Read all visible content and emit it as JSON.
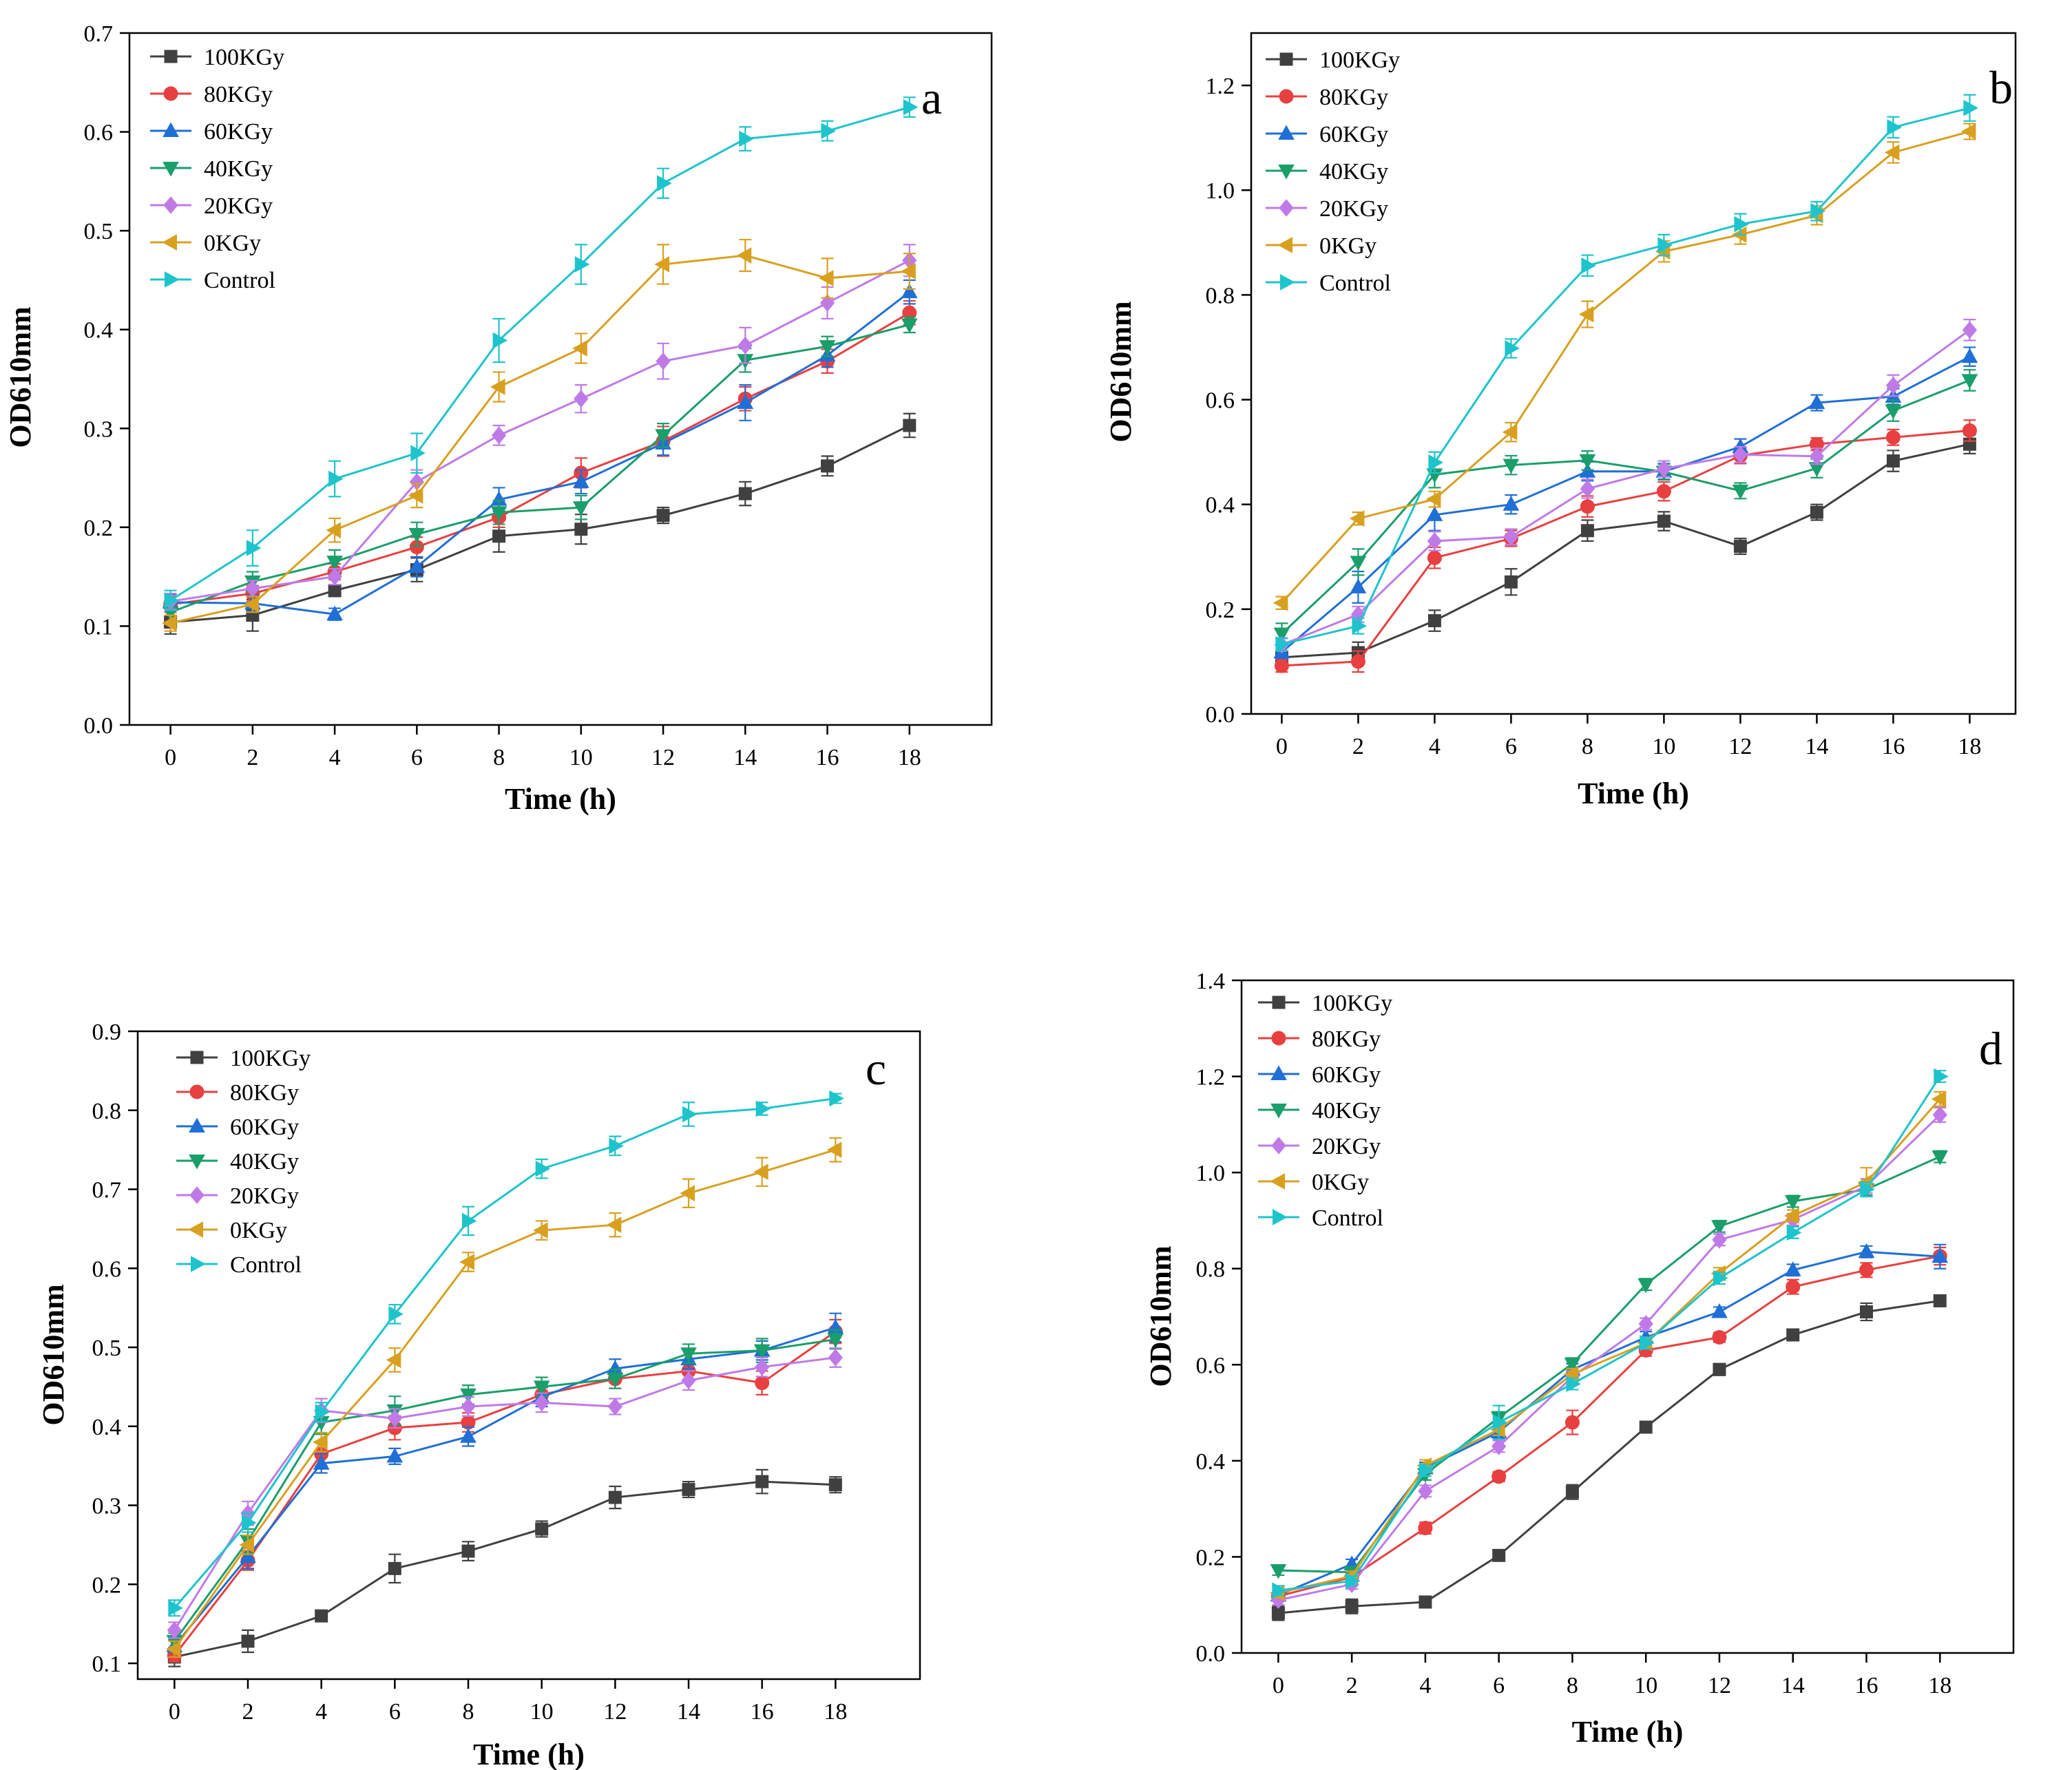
{
  "chart_data": [
    {
      "type": "line",
      "panel_label": "a",
      "xlabel": "Time (h)",
      "ylabel": "OD610mm",
      "xlim": [
        -1,
        20
      ],
      "ylim": [
        0,
        0.7
      ],
      "xticks": [
        0,
        2,
        4,
        6,
        8,
        10,
        12,
        14,
        16,
        18
      ],
      "yticks": [
        0.0,
        0.1,
        0.2,
        0.3,
        0.4,
        0.5,
        0.6,
        0.7
      ],
      "ytick_labels": [
        "0.0",
        "0.1",
        "0.2",
        "0.3",
        "0.4",
        "0.5",
        "0.6",
        "0.7"
      ],
      "legend_position": "top-left",
      "x": [
        0,
        2,
        4,
        6,
        8,
        10,
        12,
        14,
        16,
        18
      ],
      "series": [
        {
          "name": "100KGy",
          "color": "#404040",
          "marker": "square",
          "values": [
            0.104,
            0.111,
            0.136,
            0.157,
            0.191,
            0.198,
            0.212,
            0.234,
            0.262,
            0.303
          ],
          "errors": [
            0.012,
            0.016,
            0.006,
            0.012,
            0.016,
            0.015,
            0.008,
            0.012,
            0.01,
            0.012
          ]
        },
        {
          "name": "80KGy",
          "color": "#e84040",
          "marker": "circle",
          "values": [
            0.122,
            0.133,
            0.155,
            0.18,
            0.21,
            0.255,
            0.287,
            0.33,
            0.368,
            0.417
          ],
          "errors": [
            0.008,
            0.008,
            0.008,
            0.01,
            0.01,
            0.015,
            0.015,
            0.012,
            0.012,
            0.012
          ]
        },
        {
          "name": "60KGy",
          "color": "#1f6fd6",
          "marker": "triangle-up",
          "values": [
            0.124,
            0.123,
            0.112,
            0.16,
            0.228,
            0.246,
            0.285,
            0.326,
            0.374,
            0.438
          ],
          "errors": [
            0.008,
            0.008,
            0.006,
            0.01,
            0.012,
            0.012,
            0.012,
            0.018,
            0.012,
            0.012
          ]
        },
        {
          "name": "40KGy",
          "color": "#1a9e6a",
          "marker": "triangle-down",
          "values": [
            0.114,
            0.145,
            0.165,
            0.193,
            0.215,
            0.22,
            0.293,
            0.369,
            0.383,
            0.405
          ],
          "errors": [
            0.01,
            0.01,
            0.012,
            0.012,
            0.012,
            0.012,
            0.012,
            0.012,
            0.01,
            0.008
          ]
        },
        {
          "name": "20KGy",
          "color": "#c07ae8",
          "marker": "diamond",
          "values": [
            0.125,
            0.138,
            0.15,
            0.246,
            0.293,
            0.33,
            0.368,
            0.384,
            0.427,
            0.47
          ],
          "errors": [
            0.008,
            0.008,
            0.008,
            0.012,
            0.01,
            0.014,
            0.018,
            0.018,
            0.016,
            0.016
          ]
        },
        {
          "name": "0KGy",
          "color": "#d9a020",
          "marker": "triangle-left",
          "values": [
            0.103,
            0.122,
            0.197,
            0.232,
            0.342,
            0.381,
            0.466,
            0.475,
            0.452,
            0.459
          ],
          "errors": [
            0.008,
            0.008,
            0.012,
            0.012,
            0.015,
            0.015,
            0.02,
            0.016,
            0.02,
            0.018
          ]
        },
        {
          "name": "Control",
          "color": "#1ec4cc",
          "marker": "triangle-right",
          "values": [
            0.126,
            0.179,
            0.249,
            0.275,
            0.389,
            0.466,
            0.548,
            0.593,
            0.601,
            0.625
          ],
          "errors": [
            0.01,
            0.018,
            0.018,
            0.02,
            0.022,
            0.02,
            0.015,
            0.012,
            0.01,
            0.01
          ]
        }
      ]
    },
    {
      "type": "line",
      "panel_label": "b",
      "xlabel": "Time (h)",
      "ylabel": "OD610mm",
      "xlim": [
        -0.8,
        19.2
      ],
      "ylim": [
        0,
        1.3
      ],
      "xticks": [
        0,
        2,
        4,
        6,
        8,
        10,
        12,
        14,
        16,
        18
      ],
      "yticks": [
        0.0,
        0.2,
        0.4,
        0.6,
        0.8,
        1.0,
        1.2
      ],
      "ytick_labels": [
        "0.0",
        "0.2",
        "0.4",
        "0.6",
        "0.8",
        "1.0",
        "1.2"
      ],
      "legend_position": "top-left",
      "x": [
        0,
        2,
        4,
        6,
        8,
        10,
        12,
        14,
        16,
        18
      ],
      "series": [
        {
          "name": "100KGy",
          "color": "#404040",
          "marker": "square",
          "values": [
            0.108,
            0.117,
            0.178,
            0.252,
            0.35,
            0.368,
            0.32,
            0.385,
            0.483,
            0.515
          ],
          "errors": [
            0.01,
            0.02,
            0.02,
            0.025,
            0.02,
            0.018,
            0.015,
            0.015,
            0.02,
            0.018
          ]
        },
        {
          "name": "80KGy",
          "color": "#e84040",
          "marker": "circle",
          "values": [
            0.092,
            0.1,
            0.298,
            0.335,
            0.396,
            0.425,
            0.493,
            0.515,
            0.528,
            0.541
          ],
          "errors": [
            0.012,
            0.02,
            0.02,
            0.015,
            0.02,
            0.018,
            0.015,
            0.012,
            0.015,
            0.02
          ]
        },
        {
          "name": "60KGy",
          "color": "#1f6fd6",
          "marker": "triangle-up",
          "values": [
            0.118,
            0.242,
            0.38,
            0.4,
            0.463,
            0.463,
            0.51,
            0.594,
            0.606,
            0.682
          ],
          "errors": [
            0.012,
            0.03,
            0.03,
            0.018,
            0.018,
            0.015,
            0.015,
            0.015,
            0.015,
            0.018
          ]
        },
        {
          "name": "40KGy",
          "color": "#1a9e6a",
          "marker": "triangle-down",
          "values": [
            0.153,
            0.29,
            0.457,
            0.475,
            0.484,
            0.462,
            0.426,
            0.469,
            0.579,
            0.637
          ],
          "errors": [
            0.02,
            0.025,
            0.025,
            0.018,
            0.018,
            0.015,
            0.015,
            0.018,
            0.02,
            0.02
          ]
        },
        {
          "name": "20KGy",
          "color": "#c07ae8",
          "marker": "diamond",
          "values": [
            0.132,
            0.19,
            0.33,
            0.338,
            0.43,
            0.468,
            0.495,
            0.492,
            0.627,
            0.733
          ],
          "errors": [
            0.012,
            0.015,
            0.018,
            0.015,
            0.018,
            0.015,
            0.015,
            0.015,
            0.02,
            0.02
          ]
        },
        {
          "name": "0KGy",
          "color": "#d9a020",
          "marker": "triangle-left",
          "values": [
            0.212,
            0.373,
            0.41,
            0.538,
            0.763,
            0.883,
            0.915,
            0.952,
            1.072,
            1.112
          ],
          "errors": [
            0.012,
            0.012,
            0.015,
            0.018,
            0.025,
            0.02,
            0.018,
            0.018,
            0.02,
            0.015
          ]
        },
        {
          "name": "Control",
          "color": "#1ec4cc",
          "marker": "triangle-right",
          "values": [
            0.133,
            0.168,
            0.48,
            0.698,
            0.856,
            0.895,
            0.935,
            0.96,
            1.12,
            1.157
          ],
          "errors": [
            0.012,
            0.015,
            0.02,
            0.018,
            0.02,
            0.02,
            0.02,
            0.018,
            0.02,
            0.025
          ]
        }
      ]
    },
    {
      "type": "line",
      "panel_label": "c",
      "xlabel": "Time (h)",
      "ylabel": "OD610mm",
      "xlim": [
        -1,
        20.3
      ],
      "ylim": [
        0.08,
        0.9
      ],
      "xticks": [
        0,
        2,
        4,
        6,
        8,
        10,
        12,
        14,
        16,
        18
      ],
      "yticks": [
        0.1,
        0.2,
        0.3,
        0.4,
        0.5,
        0.6,
        0.7,
        0.8,
        0.9
      ],
      "ytick_labels": [
        "0.1",
        "0.2",
        "0.3",
        "0.4",
        "0.5",
        "0.6",
        "0.7",
        "0.8",
        "0.9"
      ],
      "legend_position": "top-left",
      "x": [
        0,
        2,
        4,
        6,
        8,
        10,
        12,
        14,
        16,
        18
      ],
      "series": [
        {
          "name": "100KGy",
          "color": "#404040",
          "marker": "square",
          "values": [
            0.108,
            0.128,
            0.16,
            0.22,
            0.242,
            0.27,
            0.31,
            0.32,
            0.33,
            0.326
          ],
          "errors": [
            0.012,
            0.014,
            0.005,
            0.018,
            0.012,
            0.01,
            0.014,
            0.01,
            0.015,
            0.01
          ]
        },
        {
          "name": "80KGy",
          "color": "#e84040",
          "marker": "circle",
          "values": [
            0.11,
            0.23,
            0.365,
            0.398,
            0.405,
            0.44,
            0.46,
            0.47,
            0.455,
            0.52
          ],
          "errors": [
            0.008,
            0.012,
            0.015,
            0.015,
            0.012,
            0.012,
            0.012,
            0.012,
            0.015,
            0.015
          ]
        },
        {
          "name": "60KGy",
          "color": "#1f6fd6",
          "marker": "triangle-up",
          "values": [
            0.122,
            0.235,
            0.353,
            0.362,
            0.387,
            0.437,
            0.473,
            0.485,
            0.496,
            0.525
          ],
          "errors": [
            0.008,
            0.015,
            0.012,
            0.01,
            0.012,
            0.012,
            0.012,
            0.012,
            0.012,
            0.018
          ]
        },
        {
          "name": "40KGy",
          "color": "#1a9e6a",
          "marker": "triangle-down",
          "values": [
            0.128,
            0.255,
            0.405,
            0.42,
            0.44,
            0.45,
            0.46,
            0.492,
            0.496,
            0.51
          ],
          "errors": [
            0.01,
            0.015,
            0.015,
            0.018,
            0.012,
            0.012,
            0.012,
            0.012,
            0.015,
            0.012
          ]
        },
        {
          "name": "20KGy",
          "color": "#c07ae8",
          "marker": "diamond",
          "values": [
            0.142,
            0.29,
            0.42,
            0.41,
            0.425,
            0.43,
            0.425,
            0.458,
            0.475,
            0.487
          ],
          "errors": [
            0.01,
            0.015,
            0.015,
            0.012,
            0.012,
            0.012,
            0.01,
            0.012,
            0.012,
            0.012
          ]
        },
        {
          "name": "0KGy",
          "color": "#d9a020",
          "marker": "triangle-left",
          "values": [
            0.118,
            0.25,
            0.38,
            0.484,
            0.608,
            0.648,
            0.655,
            0.695,
            0.722,
            0.75
          ],
          "errors": [
            0.01,
            0.012,
            0.012,
            0.015,
            0.012,
            0.012,
            0.015,
            0.018,
            0.018,
            0.015
          ]
        },
        {
          "name": "Control",
          "color": "#1ec4cc",
          "marker": "triangle-right",
          "values": [
            0.17,
            0.278,
            0.418,
            0.542,
            0.66,
            0.726,
            0.755,
            0.795,
            0.802,
            0.815
          ],
          "errors": [
            0.01,
            0.012,
            0.012,
            0.012,
            0.018,
            0.012,
            0.012,
            0.015,
            0.008,
            0.006
          ]
        }
      ]
    },
    {
      "type": "line",
      "panel_label": "d",
      "xlabel": "Time (h)",
      "ylabel": "OD610mm",
      "xlim": [
        -1,
        20
      ],
      "ylim": [
        0,
        1.4
      ],
      "xticks": [
        0,
        2,
        4,
        6,
        8,
        10,
        12,
        14,
        16,
        18
      ],
      "yticks": [
        0.0,
        0.2,
        0.4,
        0.6,
        0.8,
        1.0,
        1.2,
        1.4
      ],
      "ytick_labels": [
        "0.0",
        "0.2",
        "0.4",
        "0.6",
        "0.8",
        "1.0",
        "1.2",
        "1.4"
      ],
      "legend_position": "top-left",
      "x": [
        0,
        2,
        4,
        6,
        8,
        10,
        12,
        14,
        16,
        18
      ],
      "series": [
        {
          "name": "100KGy",
          "color": "#404040",
          "marker": "square",
          "values": [
            0.083,
            0.097,
            0.106,
            0.203,
            0.335,
            0.47,
            0.59,
            0.662,
            0.71,
            0.733
          ],
          "errors": [
            0.015,
            0.015,
            0.012,
            0.01,
            0.015,
            0.012,
            0.012,
            0.008,
            0.018,
            0.008
          ]
        },
        {
          "name": "80KGy",
          "color": "#e84040",
          "marker": "circle",
          "values": [
            0.118,
            0.158,
            0.26,
            0.367,
            0.48,
            0.63,
            0.657,
            0.762,
            0.797,
            0.826
          ],
          "errors": [
            0.01,
            0.01,
            0.012,
            0.01,
            0.025,
            0.012,
            0.01,
            0.015,
            0.015,
            0.018
          ]
        },
        {
          "name": "60KGy",
          "color": "#1f6fd6",
          "marker": "triangle-up",
          "values": [
            0.12,
            0.185,
            0.385,
            0.46,
            0.59,
            0.657,
            0.71,
            0.797,
            0.835,
            0.825
          ],
          "errors": [
            0.01,
            0.01,
            0.012,
            0.012,
            0.012,
            0.012,
            0.01,
            0.012,
            0.012,
            0.025
          ]
        },
        {
          "name": "40KGy",
          "color": "#1a9e6a",
          "marker": "triangle-down",
          "values": [
            0.172,
            0.168,
            0.372,
            0.49,
            0.602,
            0.767,
            0.888,
            0.94,
            0.965,
            1.033
          ],
          "errors": [
            0.01,
            0.01,
            0.012,
            0.012,
            0.012,
            0.012,
            0.012,
            0.012,
            0.012,
            0.012
          ]
        },
        {
          "name": "20KGy",
          "color": "#c07ae8",
          "marker": "diamond",
          "values": [
            0.11,
            0.143,
            0.337,
            0.43,
            0.575,
            0.685,
            0.86,
            0.902,
            0.972,
            1.12
          ],
          "errors": [
            0.01,
            0.01,
            0.012,
            0.012,
            0.012,
            0.012,
            0.012,
            0.012,
            0.015,
            0.015
          ]
        },
        {
          "name": "0KGy",
          "color": "#d9a020",
          "marker": "triangle-left",
          "values": [
            0.125,
            0.16,
            0.39,
            0.465,
            0.58,
            0.645,
            0.79,
            0.91,
            0.98,
            1.153
          ],
          "errors": [
            0.01,
            0.01,
            0.012,
            0.012,
            0.012,
            0.012,
            0.012,
            0.012,
            0.03,
            0.015
          ]
        },
        {
          "name": "Control",
          "color": "#1ec4cc",
          "marker": "triangle-right",
          "values": [
            0.13,
            0.15,
            0.38,
            0.48,
            0.56,
            0.645,
            0.78,
            0.875,
            0.965,
            1.2
          ],
          "errors": [
            0.01,
            0.01,
            0.012,
            0.035,
            0.012,
            0.012,
            0.012,
            0.012,
            0.015,
            0.012
          ]
        }
      ]
    }
  ]
}
